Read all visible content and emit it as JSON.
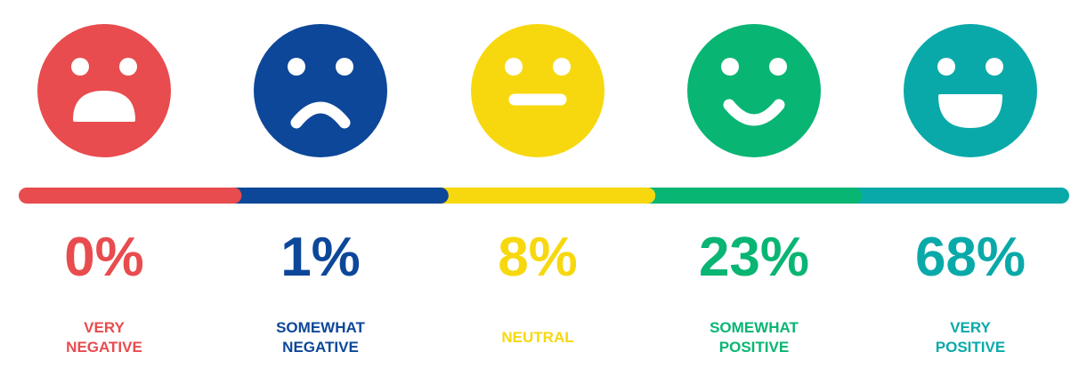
{
  "items": [
    {
      "percent": "0%",
      "label": [
        "VERY",
        "NEGATIVE"
      ],
      "color": "#e84c4e"
    },
    {
      "percent": "1%",
      "label": [
        "SOMEWHAT",
        "NEGATIVE"
      ],
      "color": "#0d4799"
    },
    {
      "percent": "8%",
      "label": [
        "NEUTRAL"
      ],
      "color": "#f7d80f"
    },
    {
      "percent": "23%",
      "label": [
        "SOMEWHAT",
        "POSITIVE"
      ],
      "color": "#09b573"
    },
    {
      "percent": "68%",
      "label": [
        "VERY",
        "POSITIVE"
      ],
      "color": "#0aa9a9"
    }
  ]
}
